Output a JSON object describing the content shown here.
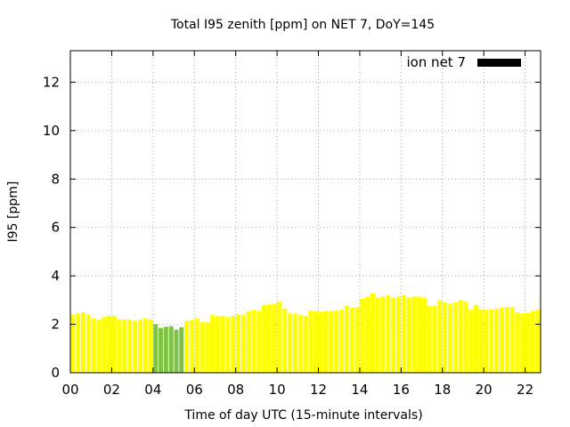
{
  "chart_data": {
    "type": "bar",
    "title": "Total I95 zenith [ppm] on NET 7, DoY=145",
    "xlabel": "Time of day UTC (15-minute intervals)",
    "ylabel": "I95 [ppm]",
    "ylim": [
      0,
      13.3
    ],
    "yticks": [
      0,
      2,
      4,
      6,
      8,
      10,
      12
    ],
    "xlim": [
      0,
      22.75
    ],
    "xticks": [
      "00",
      "02",
      "04",
      "06",
      "08",
      "10",
      "12",
      "14",
      "16",
      "18",
      "20",
      "22"
    ],
    "grid": true,
    "legend": {
      "placement": "top-right",
      "entries": [
        {
          "label": "ion net 7",
          "color": "#000000"
        }
      ]
    },
    "series": [
      {
        "name": "ion net 7",
        "interval_minutes": 15,
        "colors": {
          "normal": "#ffff00",
          "highlighted": "#7cc243"
        },
        "highlighted_range": [
          16,
          21
        ],
        "values": [
          2.4,
          2.45,
          2.5,
          2.4,
          2.25,
          2.2,
          2.3,
          2.35,
          2.35,
          2.2,
          2.2,
          2.2,
          2.15,
          2.2,
          2.25,
          2.2,
          2.0,
          1.85,
          1.9,
          1.92,
          1.78,
          1.88,
          2.15,
          2.18,
          2.25,
          2.1,
          2.08,
          2.38,
          2.35,
          2.35,
          2.3,
          2.35,
          2.4,
          2.4,
          2.55,
          2.6,
          2.55,
          2.8,
          2.82,
          2.85,
          2.95,
          2.65,
          2.45,
          2.45,
          2.4,
          2.35,
          2.55,
          2.55,
          2.52,
          2.55,
          2.55,
          2.58,
          2.62,
          2.78,
          2.7,
          2.7,
          3.05,
          3.15,
          3.28,
          3.1,
          3.15,
          3.2,
          3.1,
          3.15,
          3.2,
          3.1,
          3.15,
          3.15,
          3.1,
          2.75,
          2.75,
          3.0,
          2.9,
          2.85,
          2.9,
          3.0,
          2.95,
          2.6,
          2.8,
          2.6,
          2.6,
          2.62,
          2.65,
          2.68,
          2.72,
          2.7,
          2.5,
          2.45,
          2.48,
          2.55,
          2.6
        ]
      }
    ]
  }
}
